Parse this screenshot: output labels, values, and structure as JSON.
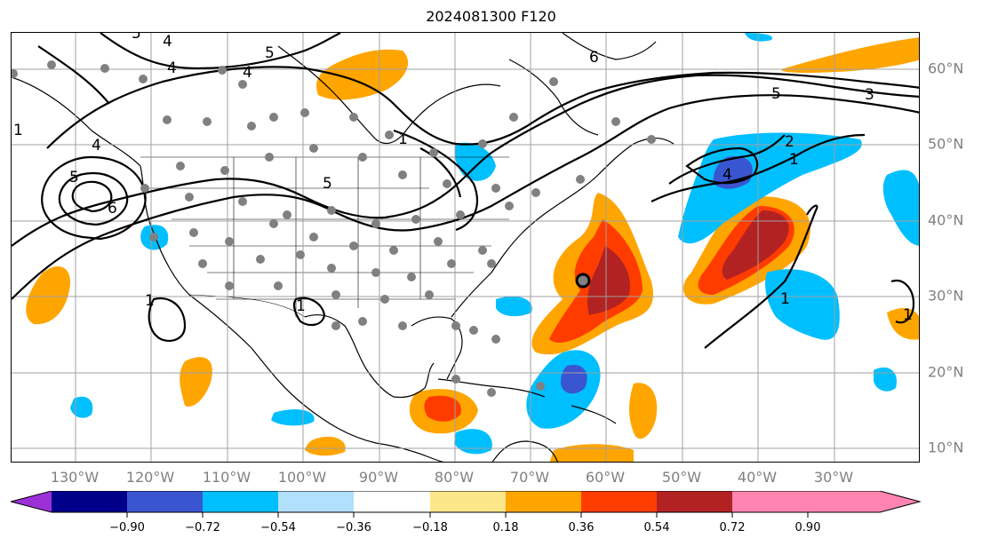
{
  "title": "2024081300 F120",
  "axes": {
    "lon_labels": [
      "130°W",
      "120°W",
      "110°W",
      "100°W",
      "90°W",
      "80°W",
      "70°W",
      "60°W",
      "50°W",
      "40°W",
      "30°W"
    ],
    "lat_labels": [
      "60°N",
      "50°N",
      "40°N",
      "30°N",
      "20°N",
      "10°N"
    ]
  },
  "contours": {
    "labels": [
      {
        "text": "5"
      },
      {
        "text": "4"
      },
      {
        "text": "4"
      },
      {
        "text": "5"
      },
      {
        "text": "4"
      },
      {
        "text": "4"
      },
      {
        "text": "5"
      },
      {
        "text": "6"
      },
      {
        "text": "1"
      },
      {
        "text": "1"
      },
      {
        "text": "1"
      },
      {
        "text": "5"
      },
      {
        "text": "1"
      },
      {
        "text": "6"
      },
      {
        "text": "5"
      },
      {
        "text": "3"
      },
      {
        "text": "2"
      },
      {
        "text": "1"
      },
      {
        "text": "4"
      },
      {
        "text": "1"
      },
      {
        "text": "1"
      }
    ]
  },
  "colorbar": {
    "ticks": [
      "−0.90",
      "−0.72",
      "−0.54",
      "−0.36",
      "−0.18",
      "0.18",
      "0.36",
      "0.54",
      "0.72",
      "0.90"
    ],
    "colors": {
      "under": "#9b30d8",
      "n090_072": "#00008b",
      "n072_054": "#3a55d0",
      "n054_036": "#00bfff",
      "n036_018": "#b0e0fc",
      "n018_018": "#ffffff",
      "p018_036": "#fbe68a",
      "p036_054": "#ffa500",
      "p054_072": "#ff3c00",
      "p072_090": "#b22222",
      "over": "#ff85b0"
    }
  },
  "map_colors": {
    "coast": "#000000",
    "grid": "#a0a0a0",
    "stations": "#808080",
    "contour": "#000000"
  }
}
